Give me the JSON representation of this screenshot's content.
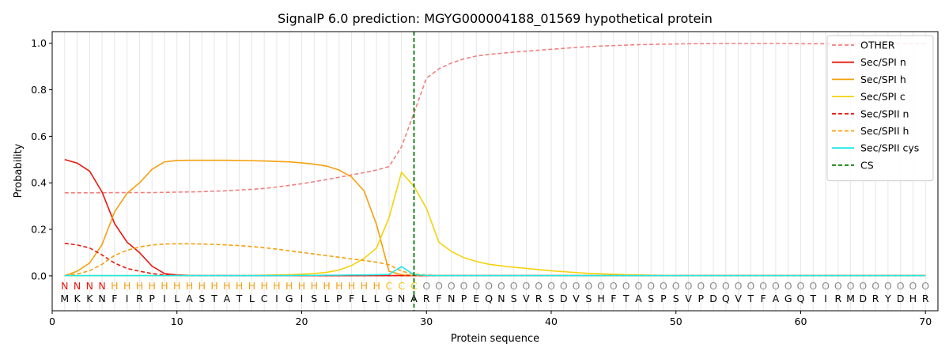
{
  "chart_data": {
    "type": "line",
    "title": "SignalP 6.0 prediction: MGYG000004188_01569 hypothetical protein",
    "xlabel": "Protein sequence",
    "ylabel": "Probability",
    "xlim": [
      0,
      71
    ],
    "ylim": [
      -0.15,
      1.05
    ],
    "xticks": [
      0,
      10,
      20,
      30,
      40,
      50,
      60,
      70
    ],
    "yticks": [
      0.0,
      0.2,
      0.4,
      0.6,
      0.8,
      1.0
    ],
    "ytick_labels": [
      "0.0",
      "0.2",
      "0.4",
      "0.6",
      "0.8",
      "1.0"
    ],
    "grid": "vertical lines at each residue",
    "legend_position": "top-right",
    "sequence": [
      "M",
      "K",
      "K",
      "N",
      "F",
      "I",
      "R",
      "P",
      "I",
      "L",
      "A",
      "S",
      "T",
      "A",
      "T",
      "L",
      "C",
      "I",
      "G",
      "I",
      "S",
      "L",
      "P",
      "F",
      "L",
      "L",
      "G",
      "N",
      "A",
      "R",
      "F",
      "N",
      "P",
      "E",
      "Q",
      "N",
      "S",
      "V",
      "R",
      "S",
      "D",
      "V",
      "S",
      "H",
      "F",
      "T",
      "A",
      "S",
      "P",
      "S",
      "V",
      "P",
      "D",
      "Q",
      "V",
      "T",
      "F",
      "A",
      "G",
      "Q",
      "T",
      "I",
      "R",
      "M",
      "D",
      "R",
      "Y",
      "D",
      "H",
      "R"
    ],
    "labels": [
      "N",
      "N",
      "N",
      "N",
      "H",
      "H",
      "H",
      "H",
      "H",
      "H",
      "H",
      "H",
      "H",
      "H",
      "H",
      "H",
      "H",
      "H",
      "H",
      "H",
      "H",
      "H",
      "H",
      "H",
      "H",
      "H",
      "C",
      "C",
      "C",
      "O",
      "O",
      "O",
      "O",
      "O",
      "O",
      "O",
      "O",
      "O",
      "O",
      "O",
      "O",
      "O",
      "O",
      "O",
      "O",
      "O",
      "O",
      "O",
      "O",
      "O",
      "O",
      "O",
      "O",
      "O",
      "O",
      "O",
      "O",
      "O",
      "O",
      "O",
      "O",
      "O",
      "O",
      "O",
      "O",
      "O",
      "O",
      "O",
      "O",
      "O"
    ],
    "label_colors": {
      "N": "#e8190f",
      "H": "#f5a00f",
      "C": "#f5c60f",
      "O": "#8c8c8c"
    },
    "cs_position": 29,
    "cs_color": "#007800",
    "series": [
      {
        "name": "OTHER",
        "color": "#f08080",
        "dash": "dashed",
        "values": [
          0.357,
          0.357,
          0.357,
          0.357,
          0.358,
          0.358,
          0.358,
          0.358,
          0.359,
          0.36,
          0.361,
          0.362,
          0.364,
          0.366,
          0.369,
          0.372,
          0.376,
          0.382,
          0.389,
          0.396,
          0.405,
          0.414,
          0.424,
          0.434,
          0.444,
          0.455,
          0.47,
          0.555,
          0.7,
          0.85,
          0.89,
          0.915,
          0.933,
          0.945,
          0.952,
          0.957,
          0.962,
          0.966,
          0.97,
          0.974,
          0.978,
          0.982,
          0.985,
          0.988,
          0.99,
          0.992,
          0.994,
          0.995,
          0.996,
          0.997,
          0.998,
          0.998,
          0.999,
          0.999,
          0.999,
          0.999,
          0.999,
          0.999,
          0.999,
          0.998,
          0.998,
          0.998,
          0.998,
          0.998,
          0.998,
          0.998,
          0.998,
          0.998,
          0.998,
          0.998
        ]
      },
      {
        "name": "Sec/SPI n",
        "color": "#e8190f",
        "dash": "solid",
        "values": [
          0.5,
          0.485,
          0.45,
          0.36,
          0.225,
          0.145,
          0.1,
          0.042,
          0.01,
          0.004,
          0.002,
          0.001,
          0.001,
          0.001,
          0.001,
          0.001,
          0.001,
          0.001,
          0.001,
          0.001,
          0.001,
          0.001,
          0.001,
          0.001,
          0.001,
          0.001,
          0.001,
          0.001,
          0.001,
          0.001,
          0.001,
          0.001,
          0.001,
          0.001,
          0.001,
          0.001,
          0.001,
          0.001,
          0.001,
          0.001,
          0.001,
          0.001,
          0.001,
          0.001,
          0.001,
          0.001,
          0.001,
          0.001,
          0.001,
          0.001,
          0.001,
          0.001,
          0.001,
          0.001,
          0.001,
          0.001,
          0.001,
          0.001,
          0.001,
          0.001,
          0.001,
          0.001,
          0.001,
          0.001,
          0.001,
          0.001,
          0.001,
          0.001,
          0.001,
          0.001
        ]
      },
      {
        "name": "Sec/SPI h",
        "color": "#f5a00f",
        "dash": "solid",
        "values": [
          0.001,
          0.02,
          0.055,
          0.135,
          0.275,
          0.355,
          0.4,
          0.458,
          0.49,
          0.496,
          0.497,
          0.497,
          0.497,
          0.497,
          0.496,
          0.495,
          0.494,
          0.492,
          0.49,
          0.486,
          0.48,
          0.472,
          0.455,
          0.425,
          0.365,
          0.22,
          0.02,
          0.005,
          0.002,
          0.001,
          0.001,
          0.001,
          0.001,
          0.001,
          0.001,
          0.001,
          0.001,
          0.001,
          0.001,
          0.001,
          0.001,
          0.001,
          0.001,
          0.001,
          0.001,
          0.001,
          0.001,
          0.001,
          0.001,
          0.001,
          0.001,
          0.001,
          0.001,
          0.001,
          0.001,
          0.001,
          0.001,
          0.001,
          0.001,
          0.001,
          0.001,
          0.001,
          0.001,
          0.001,
          0.001,
          0.001,
          0.001,
          0.001,
          0.001,
          0.001
        ]
      },
      {
        "name": "Sec/SPI c",
        "color": "#f5d20f",
        "dash": "solid",
        "values": [
          0.001,
          0.001,
          0.001,
          0.001,
          0.001,
          0.001,
          0.001,
          0.001,
          0.001,
          0.001,
          0.001,
          0.001,
          0.001,
          0.001,
          0.002,
          0.002,
          0.003,
          0.004,
          0.005,
          0.007,
          0.01,
          0.015,
          0.025,
          0.045,
          0.075,
          0.12,
          0.25,
          0.445,
          0.385,
          0.29,
          0.145,
          0.105,
          0.078,
          0.062,
          0.05,
          0.043,
          0.037,
          0.032,
          0.027,
          0.022,
          0.018,
          0.014,
          0.011,
          0.009,
          0.007,
          0.005,
          0.004,
          0.003,
          0.002,
          0.002,
          0.001,
          0.001,
          0.001,
          0.001,
          0.001,
          0.001,
          0.001,
          0.001,
          0.001,
          0.001,
          0.001,
          0.001,
          0.001,
          0.001,
          0.001,
          0.001,
          0.001,
          0.001,
          0.001,
          0.001
        ]
      },
      {
        "name": "Sec/SPII n",
        "color": "#e8190f",
        "dash": "dashed",
        "values": [
          0.14,
          0.133,
          0.12,
          0.09,
          0.055,
          0.032,
          0.02,
          0.01,
          0.004,
          0.002,
          0.001,
          0.001,
          0.001,
          0.001,
          0.001,
          0.001,
          0.001,
          0.001,
          0.001,
          0.001,
          0.001,
          0.001,
          0.001,
          0.001,
          0.001,
          0.001,
          0.001,
          0.001,
          0.001,
          0.001,
          0.001,
          0.001,
          0.001,
          0.001,
          0.001,
          0.001,
          0.001,
          0.001,
          0.001,
          0.001,
          0.001,
          0.001,
          0.001,
          0.001,
          0.001,
          0.001,
          0.001,
          0.001,
          0.001,
          0.001,
          0.001,
          0.001,
          0.001,
          0.001,
          0.001,
          0.001,
          0.001,
          0.001,
          0.001,
          0.001,
          0.001,
          0.001,
          0.001,
          0.001,
          0.001,
          0.001,
          0.001,
          0.001,
          0.001,
          0.001
        ]
      },
      {
        "name": "Sec/SPII h",
        "color": "#f5a00f",
        "dash": "dashed",
        "values": [
          0.002,
          0.008,
          0.022,
          0.05,
          0.088,
          0.11,
          0.124,
          0.133,
          0.137,
          0.138,
          0.138,
          0.137,
          0.135,
          0.133,
          0.13,
          0.126,
          0.121,
          0.115,
          0.108,
          0.101,
          0.094,
          0.087,
          0.08,
          0.073,
          0.066,
          0.059,
          0.048,
          0.02,
          0.008,
          0.004,
          0.002,
          0.001,
          0.001,
          0.001,
          0.001,
          0.001,
          0.001,
          0.001,
          0.001,
          0.001,
          0.001,
          0.001,
          0.001,
          0.001,
          0.001,
          0.001,
          0.001,
          0.001,
          0.001,
          0.001,
          0.001,
          0.001,
          0.001,
          0.001,
          0.001,
          0.001,
          0.001,
          0.001,
          0.001,
          0.001,
          0.001,
          0.001,
          0.001,
          0.001,
          0.001,
          0.001,
          0.001,
          0.001,
          0.001,
          0.001
        ]
      },
      {
        "name": "Sec/SPII cys",
        "color": "#1fe8e8",
        "dash": "solid",
        "values": [
          0.001,
          0.001,
          0.001,
          0.001,
          0.001,
          0.001,
          0.001,
          0.001,
          0.001,
          0.001,
          0.001,
          0.001,
          0.001,
          0.001,
          0.001,
          0.001,
          0.001,
          0.001,
          0.001,
          0.002,
          0.002,
          0.003,
          0.003,
          0.004,
          0.004,
          0.005,
          0.006,
          0.04,
          0.005,
          0.002,
          0.001,
          0.001,
          0.001,
          0.001,
          0.001,
          0.001,
          0.001,
          0.001,
          0.001,
          0.001,
          0.001,
          0.001,
          0.001,
          0.001,
          0.001,
          0.001,
          0.001,
          0.001,
          0.001,
          0.001,
          0.001,
          0.001,
          0.001,
          0.001,
          0.001,
          0.001,
          0.001,
          0.001,
          0.001,
          0.001,
          0.001,
          0.001,
          0.001,
          0.001,
          0.001,
          0.001,
          0.001,
          0.001,
          0.001,
          0.001
        ]
      }
    ],
    "legend": [
      {
        "name": "OTHER",
        "color": "#f08080",
        "dash": "dashed"
      },
      {
        "name": "Sec/SPI n",
        "color": "#e8190f",
        "dash": "solid"
      },
      {
        "name": "Sec/SPI h",
        "color": "#f5a00f",
        "dash": "solid"
      },
      {
        "name": "Sec/SPI c",
        "color": "#f5d20f",
        "dash": "solid"
      },
      {
        "name": "Sec/SPII n",
        "color": "#e8190f",
        "dash": "dashed"
      },
      {
        "name": "Sec/SPII h",
        "color": "#f5a00f",
        "dash": "dashed"
      },
      {
        "name": "Sec/SPII cys",
        "color": "#1fe8e8",
        "dash": "solid"
      },
      {
        "name": "CS",
        "color": "#007800",
        "dash": "dashed"
      }
    ]
  }
}
